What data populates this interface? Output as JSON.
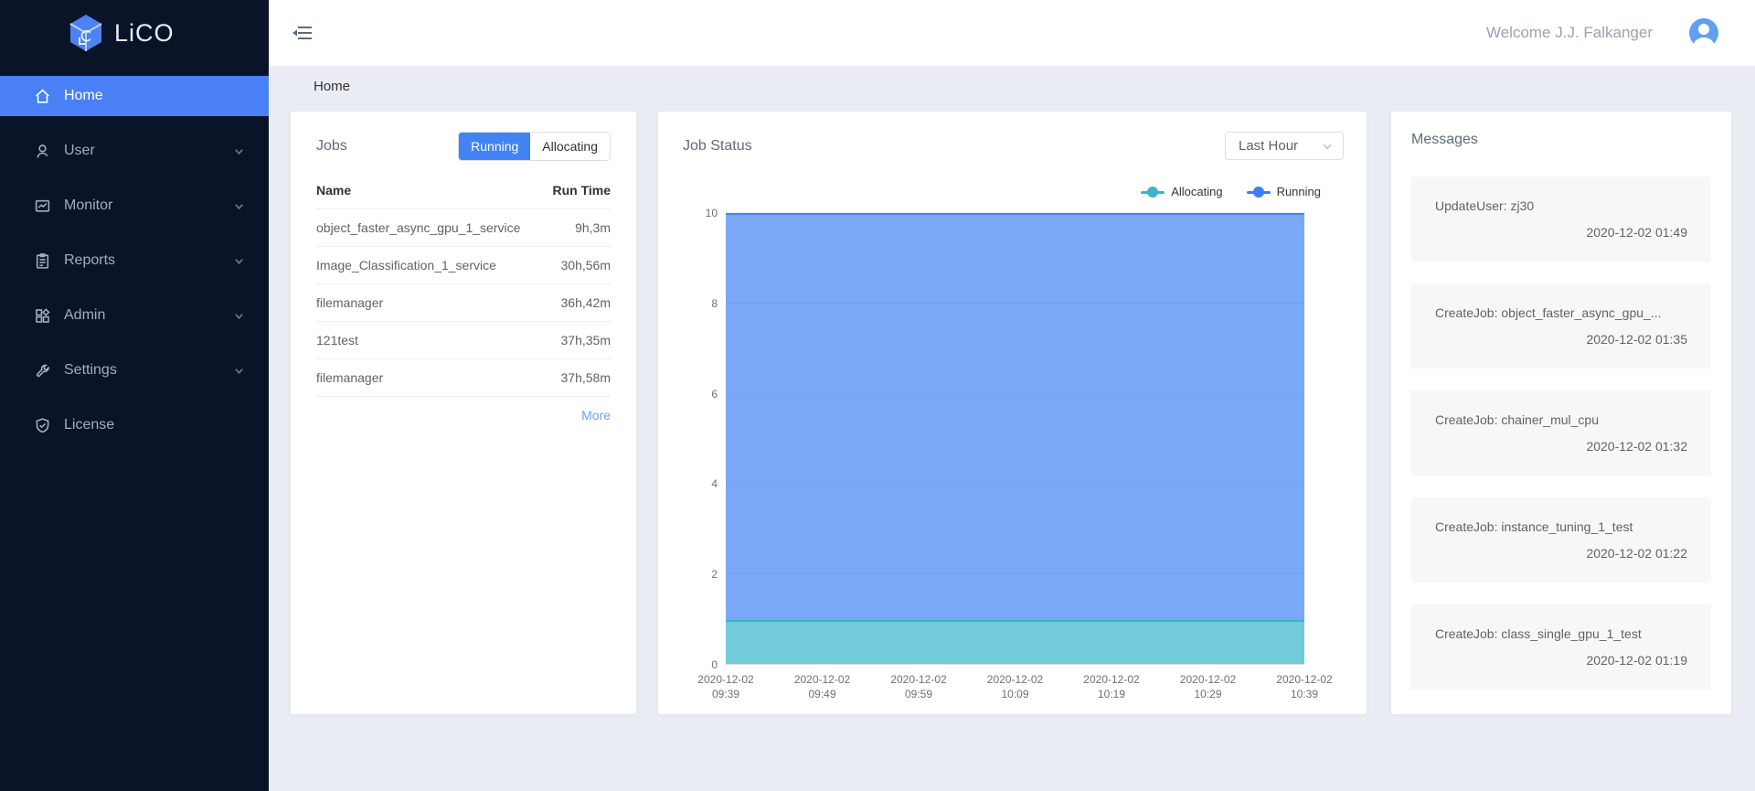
{
  "sidebar": {
    "logo_text": "LiCO",
    "items": [
      {
        "label": "Home",
        "active": true,
        "expandable": false
      },
      {
        "label": "User",
        "active": false,
        "expandable": true
      },
      {
        "label": "Monitor",
        "active": false,
        "expandable": true
      },
      {
        "label": "Reports",
        "active": false,
        "expandable": true
      },
      {
        "label": "Admin",
        "active": false,
        "expandable": true
      },
      {
        "label": "Settings",
        "active": false,
        "expandable": true
      },
      {
        "label": "License",
        "active": false,
        "expandable": false
      }
    ]
  },
  "topbar": {
    "welcome": "Welcome J.J. Falkanger"
  },
  "breadcrumb": "Home",
  "jobs": {
    "title": "Jobs",
    "tabs": [
      {
        "label": "Running",
        "active": true
      },
      {
        "label": "Allocating",
        "active": false
      }
    ],
    "columns": {
      "name": "Name",
      "run_time": "Run Time"
    },
    "rows": [
      {
        "name": "object_faster_async_gpu_1_service",
        "run_time": "9h,3m"
      },
      {
        "name": "Image_Classification_1_service",
        "run_time": "30h,56m"
      },
      {
        "name": "filemanager",
        "run_time": "36h,42m"
      },
      {
        "name": "121test",
        "run_time": "37h,35m"
      },
      {
        "name": "filemanager",
        "run_time": "37h,58m"
      }
    ],
    "more_label": "More"
  },
  "job_status": {
    "title": "Job Status",
    "range_select": "Last Hour",
    "legend": [
      {
        "label": "Allocating",
        "color": "#3cb5c9"
      },
      {
        "label": "Running",
        "color": "#3e7cf7"
      }
    ]
  },
  "chart_data": {
    "type": "area",
    "stacked": true,
    "x": [
      "2020-12-02 09:39",
      "2020-12-02 09:49",
      "2020-12-02 09:59",
      "2020-12-02 10:09",
      "2020-12-02 10:19",
      "2020-12-02 10:29",
      "2020-12-02 10:39"
    ],
    "series": [
      {
        "name": "Allocating",
        "values": [
          1,
          1,
          1,
          1,
          1,
          1,
          1
        ],
        "color": "#35b5c9"
      },
      {
        "name": "Running",
        "values": [
          9,
          9,
          9,
          9,
          9,
          9,
          9
        ],
        "color": "#4285f4"
      }
    ],
    "ylim": [
      0,
      10
    ],
    "yticks": [
      0,
      2,
      4,
      6,
      8,
      10
    ],
    "grid": true,
    "legend_position": "top-right"
  },
  "messages": {
    "title": "Messages",
    "items": [
      {
        "text": "UpdateUser: zj30",
        "time": "2020-12-02 01:49"
      },
      {
        "text": "CreateJob: object_faster_async_gpu_...",
        "time": "2020-12-02 01:35"
      },
      {
        "text": "CreateJob: chainer_mul_cpu",
        "time": "2020-12-02 01:32"
      },
      {
        "text": "CreateJob: instance_tuning_1_test",
        "time": "2020-12-02 01:22"
      },
      {
        "text": "CreateJob: class_single_gpu_1_test",
        "time": "2020-12-02 01:19"
      }
    ]
  },
  "colors": {
    "sidebar_bg": "#0a1428",
    "nav_active_bg": "#4a80f5",
    "accent_blue": "#4183f2",
    "allocating_teal": "#35b5c9",
    "running_blue": "#4285f4",
    "avatar_bg": "#61a0ef",
    "page_bg": "#e9edf3"
  }
}
